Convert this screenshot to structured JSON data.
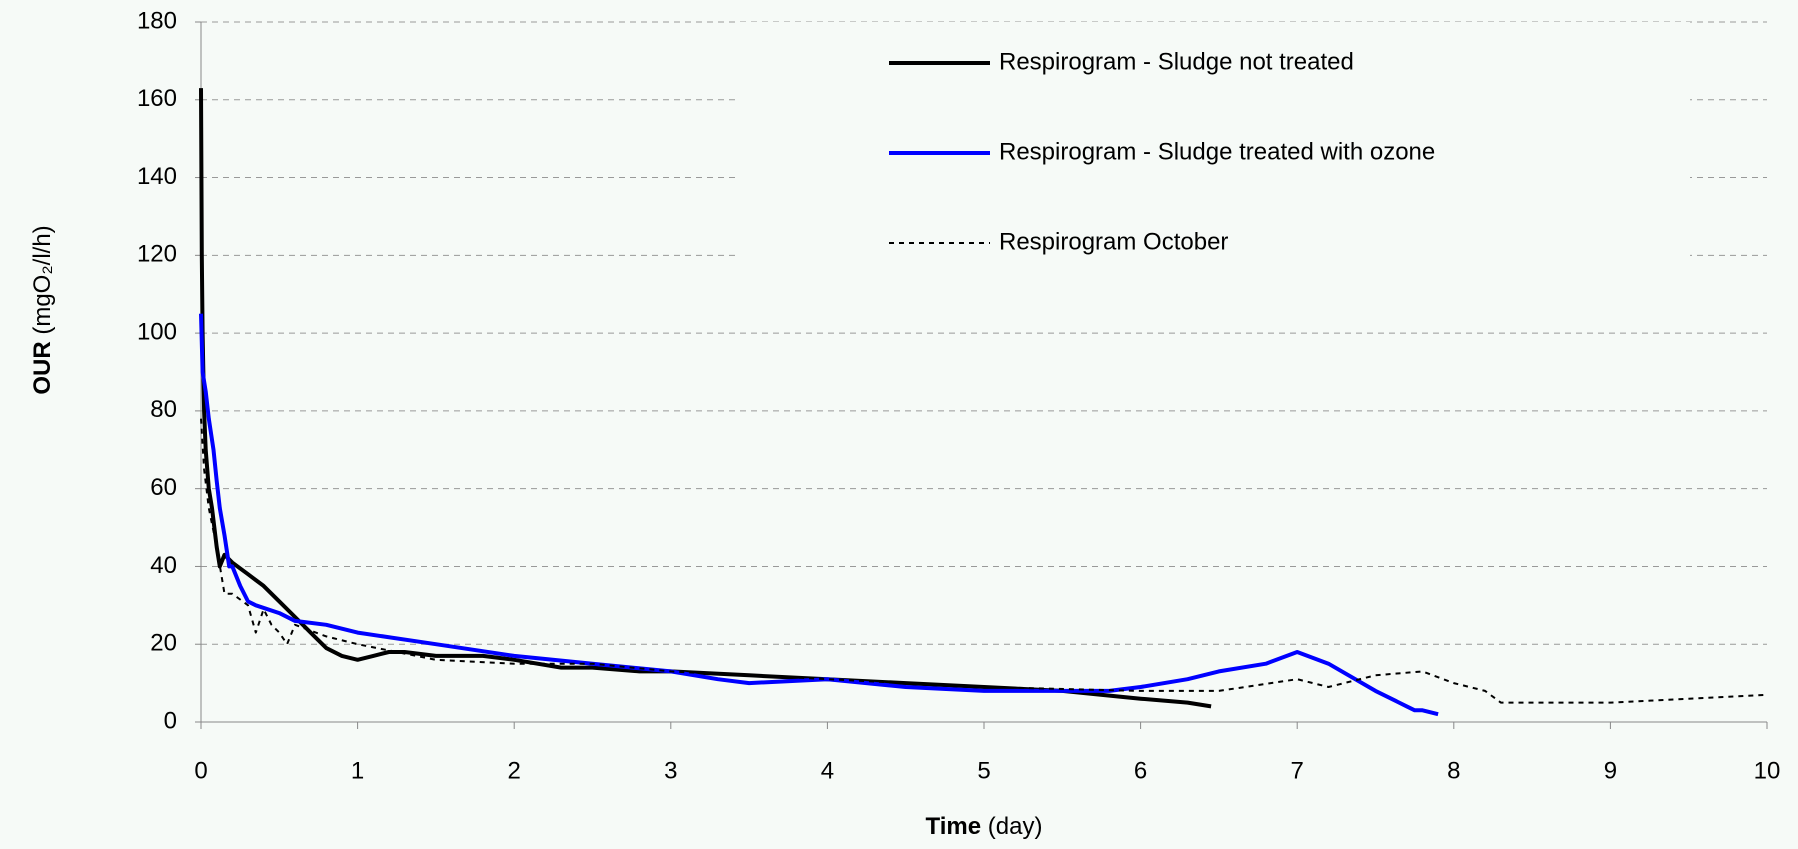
{
  "chart_data": {
    "type": "line",
    "y_label": "OUR",
    "y_label_unit": "(mgO₂/l/h)",
    "x_label": "Time",
    "x_label_unit": "(day)",
    "xlim": [
      0,
      10
    ],
    "xticks": [
      0,
      1,
      2,
      3,
      4,
      5,
      6,
      7,
      8,
      9,
      10
    ],
    "ylim": [
      0,
      180
    ],
    "yticks": [
      0,
      20,
      40,
      60,
      80,
      100,
      120,
      140,
      160,
      180
    ],
    "grid": true,
    "legend": "top-right",
    "series": [
      {
        "name": "Respirogram - Sludge not treated",
        "color": "#000000",
        "style": "solid",
        "x": [
          0,
          0.005,
          0.01,
          0.02,
          0.03,
          0.05,
          0.07,
          0.1,
          0.12,
          0.15,
          0.2,
          0.3,
          0.4,
          0.5,
          0.6,
          0.7,
          0.8,
          0.9,
          1.0,
          1.1,
          1.2,
          1.3,
          1.5,
          1.8,
          2.0,
          2.3,
          2.5,
          2.8,
          3.0,
          3.5,
          4.0,
          4.5,
          5.0,
          5.5,
          6.0,
          6.3,
          6.45
        ],
        "values": [
          163,
          120,
          100,
          80,
          70,
          60,
          55,
          45,
          40,
          43,
          41,
          38,
          35,
          31,
          27,
          23,
          19,
          17,
          16,
          17,
          18,
          18,
          17,
          17,
          16,
          14,
          14,
          13,
          13,
          12,
          11,
          10,
          9,
          8,
          6,
          5,
          4
        ]
      },
      {
        "name": "Respirogram - Sludge treated with ozone",
        "color": "#0000ff",
        "style": "solid",
        "x": [
          0,
          0.01,
          0.03,
          0.05,
          0.08,
          0.1,
          0.12,
          0.15,
          0.18,
          0.2,
          0.25,
          0.3,
          0.35,
          0.5,
          0.6,
          0.8,
          1.0,
          1.5,
          2.0,
          2.5,
          3.0,
          3.3,
          3.5,
          4.0,
          4.5,
          5.0,
          5.5,
          5.8,
          6.0,
          6.3,
          6.5,
          6.8,
          7.0,
          7.2,
          7.5,
          7.7,
          7.75,
          7.8,
          7.9
        ],
        "values": [
          105,
          90,
          85,
          78,
          70,
          62,
          55,
          48,
          40,
          40,
          35,
          31,
          30,
          28,
          26,
          25,
          23,
          20,
          17,
          15,
          13,
          11,
          10,
          11,
          9,
          8,
          8,
          8,
          9,
          11,
          13,
          15,
          18,
          15,
          8,
          4,
          3,
          3,
          2
        ]
      },
      {
        "name": "Respirogram October",
        "color": "#000000",
        "style": "dotted",
        "x": [
          0,
          0.02,
          0.05,
          0.1,
          0.15,
          0.2,
          0.3,
          0.35,
          0.4,
          0.45,
          0.5,
          0.55,
          0.6,
          0.8,
          1,
          1.5,
          2,
          2.5,
          3,
          3.5,
          4,
          5,
          6,
          6.5,
          7,
          7.2,
          7.5,
          7.8,
          8,
          8.2,
          8.3,
          8.5,
          9,
          9.5,
          10
        ],
        "values": [
          78,
          65,
          55,
          45,
          33,
          33,
          30,
          23,
          29,
          25,
          23,
          20,
          25,
          22,
          20,
          16,
          15,
          15,
          13,
          12,
          11,
          9,
          8,
          8,
          11,
          9,
          12,
          13,
          10,
          8,
          5,
          5,
          5,
          6,
          7
        ]
      }
    ]
  }
}
